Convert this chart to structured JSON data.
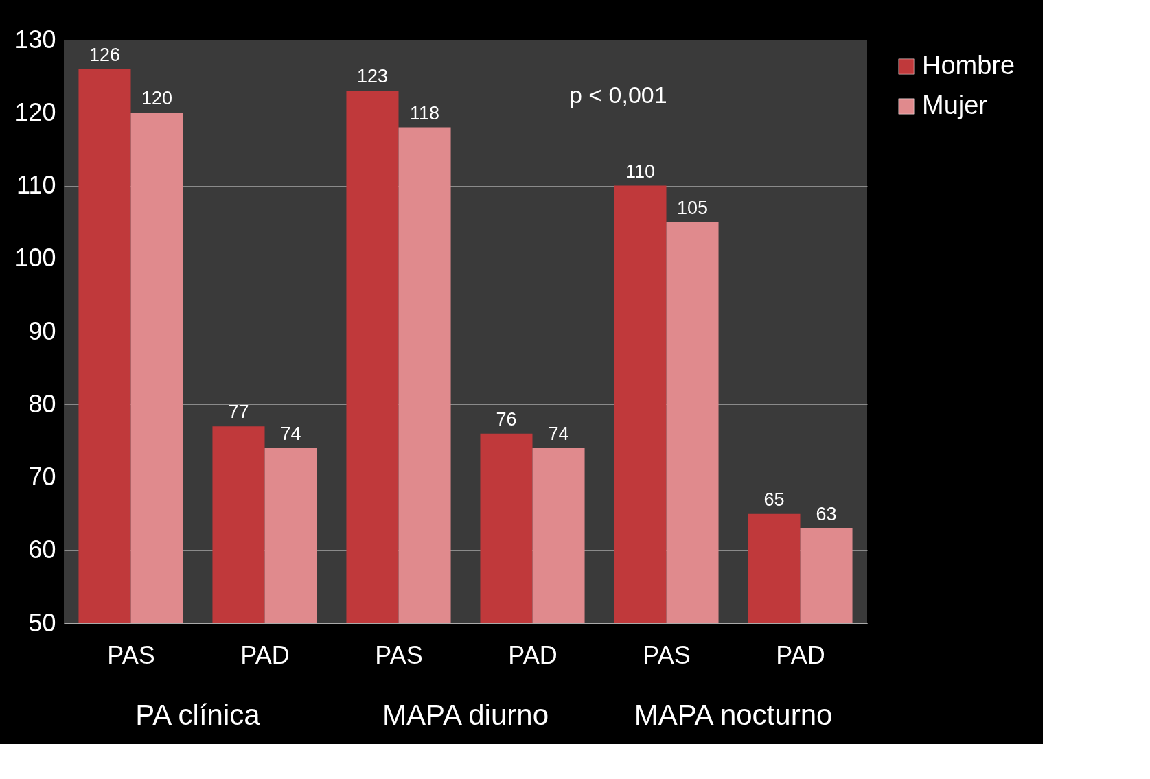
{
  "chart_data": {
    "type": "bar",
    "categories": [
      "PAS",
      "PAD",
      "PAS",
      "PAD",
      "PAS",
      "PAD"
    ],
    "series": [
      {
        "name": "Hombre",
        "color": "#c0393b",
        "values": [
          126,
          77,
          123,
          76,
          110,
          65
        ]
      },
      {
        "name": "Mujer",
        "color": "#e08a8d",
        "values": [
          120,
          74,
          118,
          74,
          105,
          63
        ]
      }
    ],
    "ylim": [
      50,
      130
    ],
    "yticks": [
      50,
      60,
      70,
      80,
      90,
      100,
      110,
      120,
      130
    ],
    "grid": "y",
    "legend": "right",
    "data_labels": true,
    "annotations": [
      "p < 0,001",
      "PA clínica",
      "MAPA diurno",
      "MAPA nocturno"
    ]
  }
}
